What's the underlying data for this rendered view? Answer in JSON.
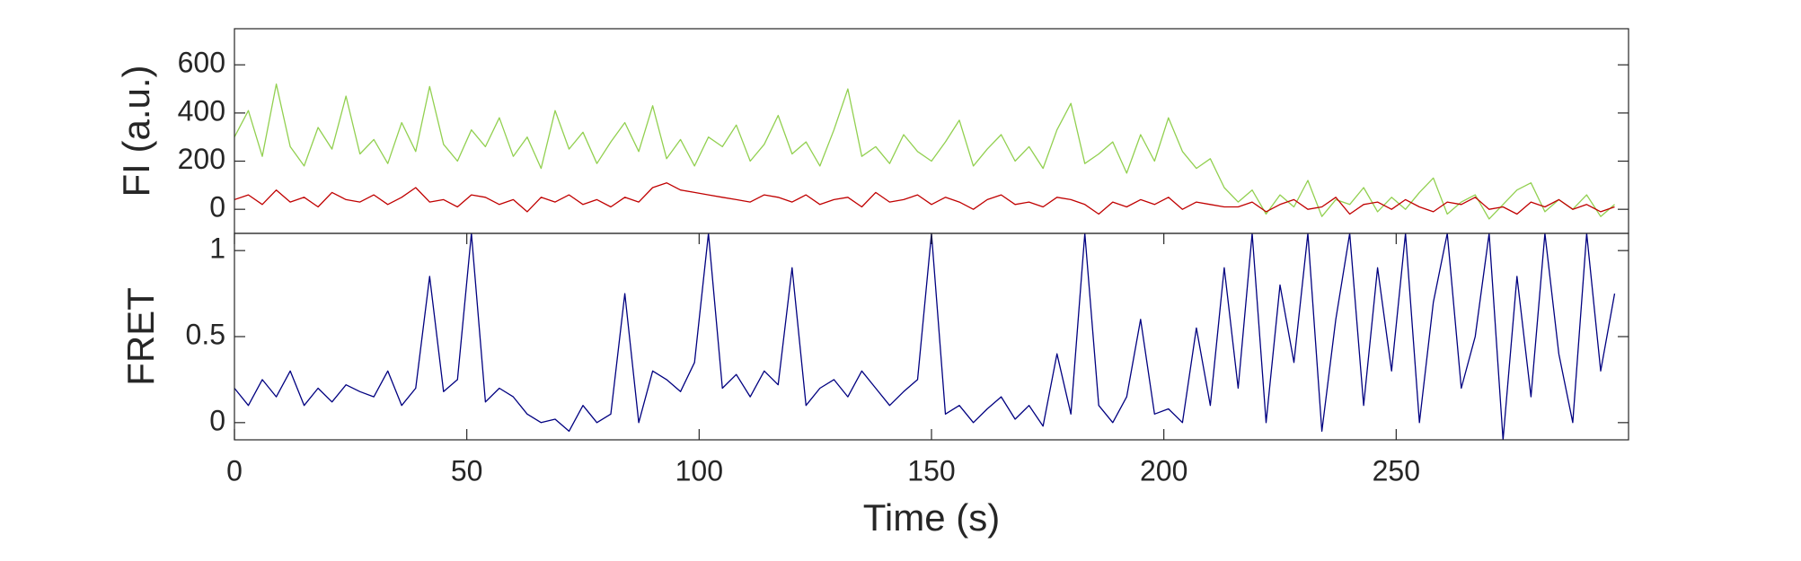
{
  "chart_data": [
    {
      "type": "line",
      "ylabel": "FI (a.u.)",
      "x": [
        0,
        3,
        6,
        9,
        12,
        15,
        18,
        21,
        24,
        27,
        30,
        33,
        36,
        39,
        42,
        45,
        48,
        51,
        54,
        57,
        60,
        63,
        66,
        69,
        72,
        75,
        78,
        81,
        84,
        87,
        90,
        93,
        96,
        99,
        102,
        105,
        108,
        111,
        114,
        117,
        120,
        123,
        126,
        129,
        132,
        135,
        138,
        141,
        144,
        147,
        150,
        153,
        156,
        159,
        162,
        165,
        168,
        171,
        174,
        177,
        180,
        183,
        186,
        189,
        192,
        195,
        198,
        201,
        204,
        207,
        210,
        213,
        216,
        219,
        222,
        225,
        228,
        231,
        234,
        237,
        240,
        243,
        246,
        249,
        252,
        255,
        258,
        261,
        264,
        267,
        270,
        273,
        276,
        279,
        282,
        285,
        288,
        291,
        294,
        297
      ],
      "series": [
        {
          "color": "#92d050",
          "values": [
            300,
            410,
            220,
            520,
            260,
            180,
            340,
            250,
            470,
            230,
            290,
            190,
            360,
            240,
            510,
            270,
            200,
            330,
            260,
            380,
            220,
            300,
            170,
            410,
            250,
            320,
            190,
            280,
            360,
            240,
            430,
            210,
            290,
            180,
            300,
            260,
            350,
            200,
            270,
            390,
            230,
            280,
            180,
            330,
            500,
            220,
            260,
            190,
            310,
            240,
            200,
            280,
            370,
            180,
            250,
            310,
            200,
            260,
            170,
            330,
            440,
            190,
            230,
            280,
            150,
            310,
            200,
            380,
            240,
            170,
            210,
            90,
            30,
            80,
            -20,
            60,
            10,
            120,
            -30,
            40,
            20,
            90,
            -10,
            50,
            0,
            70,
            130,
            -20,
            30,
            60,
            -40,
            20,
            80,
            110,
            -10,
            40,
            0,
            60,
            -30,
            20
          ]
        },
        {
          "color": "#c00000",
          "values": [
            40,
            60,
            20,
            80,
            30,
            50,
            10,
            70,
            40,
            30,
            60,
            20,
            50,
            90,
            30,
            40,
            10,
            60,
            50,
            20,
            40,
            -10,
            50,
            30,
            60,
            20,
            40,
            10,
            50,
            30,
            90,
            110,
            80,
            70,
            60,
            50,
            40,
            30,
            60,
            50,
            30,
            60,
            20,
            40,
            50,
            10,
            70,
            30,
            40,
            60,
            20,
            50,
            30,
            0,
            40,
            60,
            20,
            30,
            10,
            50,
            40,
            20,
            -20,
            30,
            10,
            40,
            20,
            50,
            0,
            30,
            20,
            10,
            10,
            30,
            -10,
            20,
            40,
            0,
            10,
            50,
            -20,
            20,
            30,
            0,
            40,
            10,
            -10,
            30,
            20,
            50,
            0,
            10,
            -20,
            30,
            10,
            40,
            0,
            20,
            -10,
            10
          ]
        }
      ],
      "xlim": [
        0,
        300
      ],
      "ylim": [
        -100,
        750
      ],
      "yticks": [
        0,
        200,
        400,
        600
      ]
    },
    {
      "type": "line",
      "ylabel": "FRET",
      "xlabel": "Time (s)",
      "x": [
        0,
        3,
        6,
        9,
        12,
        15,
        18,
        21,
        24,
        27,
        30,
        33,
        36,
        39,
        42,
        45,
        48,
        51,
        54,
        57,
        60,
        63,
        66,
        69,
        72,
        75,
        78,
        81,
        84,
        87,
        90,
        93,
        96,
        99,
        102,
        105,
        108,
        111,
        114,
        117,
        120,
        123,
        126,
        129,
        132,
        135,
        138,
        141,
        144,
        147,
        150,
        153,
        156,
        159,
        162,
        165,
        168,
        171,
        174,
        177,
        180,
        183,
        186,
        189,
        192,
        195,
        198,
        201,
        204,
        207,
        210,
        213,
        216,
        219,
        222,
        225,
        228,
        231,
        234,
        237,
        240,
        243,
        246,
        249,
        252,
        255,
        258,
        261,
        264,
        267,
        270,
        273,
        276,
        279,
        282,
        285,
        288,
        291,
        294,
        297
      ],
      "series": [
        {
          "color": "#000080",
          "values": [
            0.2,
            0.1,
            0.25,
            0.15,
            0.3,
            0.1,
            0.2,
            0.12,
            0.22,
            0.18,
            0.15,
            0.3,
            0.1,
            0.2,
            0.85,
            0.18,
            0.25,
            1.1,
            0.12,
            0.2,
            0.15,
            0.05,
            0.0,
            0.02,
            -0.05,
            0.1,
            0.0,
            0.05,
            0.75,
            0.0,
            0.3,
            0.25,
            0.18,
            0.35,
            1.1,
            0.2,
            0.28,
            0.15,
            0.3,
            0.22,
            0.9,
            0.1,
            0.2,
            0.25,
            0.15,
            0.3,
            0.2,
            0.1,
            0.18,
            0.25,
            1.1,
            0.05,
            0.1,
            0.0,
            0.08,
            0.15,
            0.02,
            0.1,
            -0.02,
            0.4,
            0.05,
            1.1,
            0.1,
            0.0,
            0.15,
            0.6,
            0.05,
            0.08,
            0.0,
            0.55,
            0.1,
            0.9,
            0.2,
            1.1,
            0.0,
            0.8,
            0.35,
            1.1,
            -0.05,
            0.6,
            1.1,
            0.1,
            0.9,
            0.3,
            1.1,
            0.0,
            0.7,
            1.1,
            0.2,
            0.5,
            1.1,
            -0.1,
            0.85,
            0.15,
            1.1,
            0.4,
            0.0,
            1.1,
            0.3,
            0.75
          ]
        }
      ],
      "xlim": [
        0,
        300
      ],
      "ylim": [
        -0.1,
        1.1
      ],
      "yticks": [
        0,
        0.5,
        1
      ],
      "xticks": [
        0,
        50,
        100,
        150,
        200,
        250
      ]
    }
  ]
}
